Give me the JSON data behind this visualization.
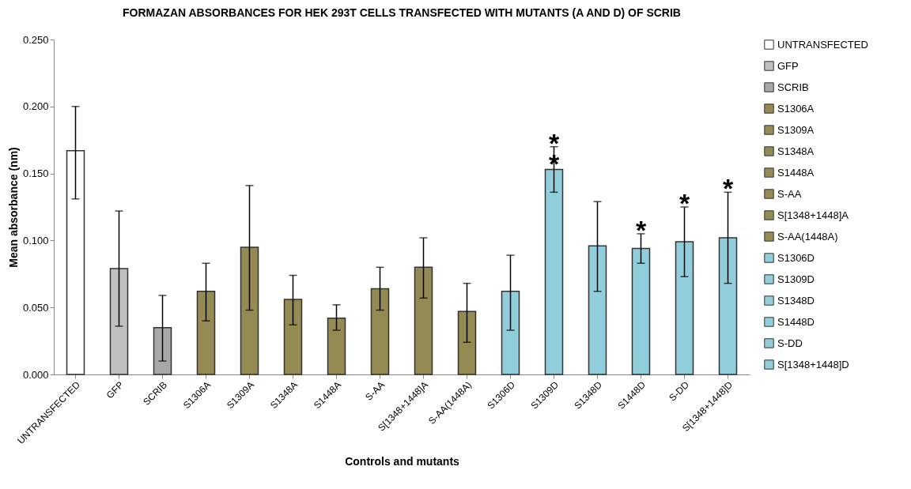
{
  "chart_data": {
    "type": "bar",
    "title": "FORMAZAN ABSORBANCES FOR HEK 293T CELLS TRANSFECTED WITH MUTANTS (A AND D) OF SCRIB",
    "xlabel": "Controls and mutants",
    "ylabel": "Mean absorbance (nm)",
    "categories": [
      "UNTRANSFECTED",
      "GFP",
      "SCRIB",
      "S1306A",
      "S1309A",
      "S1348A",
      "S1448A",
      "S-AA",
      "S[1348+1448]A",
      "S-AA(1448A)",
      "S1306D",
      "S1309D",
      "S1348D",
      "S1448D",
      "S-DD",
      "S[1348+1448]D"
    ],
    "series": [
      {
        "name": "UNTRANSFECTED",
        "color": "#ffffff",
        "values": [
          0.167,
          null,
          null,
          null,
          null,
          null,
          null,
          null,
          null,
          null,
          null,
          null,
          null,
          null,
          null,
          null
        ],
        "errors": [
          [
            0.131,
            0.2
          ],
          null,
          null,
          null,
          null,
          null,
          null,
          null,
          null,
          null,
          null,
          null,
          null,
          null,
          null,
          null
        ]
      },
      {
        "name": "GFP",
        "color": "#c0c0c0",
        "values": [
          null,
          0.079,
          null,
          null,
          null,
          null,
          null,
          null,
          null,
          null,
          null,
          null,
          null,
          null,
          null,
          null
        ],
        "errors": [
          null,
          [
            0.036,
            0.122
          ],
          null,
          null,
          null,
          null,
          null,
          null,
          null,
          null,
          null,
          null,
          null,
          null,
          null,
          null
        ]
      },
      {
        "name": "SCRIB",
        "color": "#a8a8a8",
        "values": [
          null,
          null,
          0.035,
          null,
          null,
          null,
          null,
          null,
          null,
          null,
          null,
          null,
          null,
          null,
          null,
          null
        ],
        "errors": [
          null,
          null,
          [
            0.01,
            0.059
          ],
          null,
          null,
          null,
          null,
          null,
          null,
          null,
          null,
          null,
          null,
          null,
          null,
          null
        ]
      },
      {
        "name": "S1306A",
        "color": "#948a54",
        "values": [
          null,
          null,
          null,
          0.062,
          null,
          null,
          null,
          null,
          null,
          null,
          null,
          null,
          null,
          null,
          null,
          null
        ],
        "errors": [
          null,
          null,
          null,
          [
            0.04,
            0.083
          ],
          null,
          null,
          null,
          null,
          null,
          null,
          null,
          null,
          null,
          null,
          null,
          null
        ]
      },
      {
        "name": "S1309A",
        "color": "#948a54",
        "values": [
          null,
          null,
          null,
          null,
          0.095,
          null,
          null,
          null,
          null,
          null,
          null,
          null,
          null,
          null,
          null,
          null
        ],
        "errors": [
          null,
          null,
          null,
          null,
          [
            0.048,
            0.141
          ],
          null,
          null,
          null,
          null,
          null,
          null,
          null,
          null,
          null,
          null,
          null
        ]
      },
      {
        "name": "S1348A",
        "color": "#948a54",
        "values": [
          null,
          null,
          null,
          null,
          null,
          0.056,
          null,
          null,
          null,
          null,
          null,
          null,
          null,
          null,
          null,
          null
        ],
        "errors": [
          null,
          null,
          null,
          null,
          null,
          [
            0.037,
            0.074
          ],
          null,
          null,
          null,
          null,
          null,
          null,
          null,
          null,
          null,
          null
        ]
      },
      {
        "name": "S1448A",
        "color": "#948a54",
        "values": [
          null,
          null,
          null,
          null,
          null,
          null,
          0.042,
          null,
          null,
          null,
          null,
          null,
          null,
          null,
          null,
          null
        ],
        "errors": [
          null,
          null,
          null,
          null,
          null,
          null,
          [
            0.033,
            0.052
          ],
          null,
          null,
          null,
          null,
          null,
          null,
          null,
          null,
          null
        ]
      },
      {
        "name": "S-AA",
        "color": "#948a54",
        "values": [
          null,
          null,
          null,
          null,
          null,
          null,
          null,
          0.064,
          null,
          null,
          null,
          null,
          null,
          null,
          null,
          null
        ],
        "errors": [
          null,
          null,
          null,
          null,
          null,
          null,
          null,
          [
            0.048,
            0.08
          ],
          null,
          null,
          null,
          null,
          null,
          null,
          null,
          null
        ]
      },
      {
        "name": "S[1348+1448]A",
        "color": "#948a54",
        "values": [
          null,
          null,
          null,
          null,
          null,
          null,
          null,
          null,
          0.08,
          null,
          null,
          null,
          null,
          null,
          null,
          null
        ],
        "errors": [
          null,
          null,
          null,
          null,
          null,
          null,
          null,
          null,
          [
            0.057,
            0.102
          ],
          null,
          null,
          null,
          null,
          null,
          null,
          null
        ]
      },
      {
        "name": "S-AA(1448A)",
        "color": "#948a54",
        "values": [
          null,
          null,
          null,
          null,
          null,
          null,
          null,
          null,
          null,
          0.047,
          null,
          null,
          null,
          null,
          null,
          null
        ],
        "errors": [
          null,
          null,
          null,
          null,
          null,
          null,
          null,
          null,
          null,
          [
            0.024,
            0.068
          ],
          null,
          null,
          null,
          null,
          null,
          null
        ]
      },
      {
        "name": "S1306D",
        "color": "#92cddc",
        "values": [
          null,
          null,
          null,
          null,
          null,
          null,
          null,
          null,
          null,
          null,
          0.062,
          null,
          null,
          null,
          null,
          null
        ],
        "errors": [
          null,
          null,
          null,
          null,
          null,
          null,
          null,
          null,
          null,
          null,
          [
            0.033,
            0.089
          ],
          null,
          null,
          null,
          null,
          null
        ]
      },
      {
        "name": "S1309D",
        "color": "#92cddc",
        "values": [
          null,
          null,
          null,
          null,
          null,
          null,
          null,
          null,
          null,
          null,
          null,
          0.153,
          null,
          null,
          null,
          null
        ],
        "errors": [
          null,
          null,
          null,
          null,
          null,
          null,
          null,
          null,
          null,
          null,
          null,
          [
            0.136,
            0.17
          ],
          null,
          null,
          null,
          null
        ]
      },
      {
        "name": "S1348D",
        "color": "#92cddc",
        "values": [
          null,
          null,
          null,
          null,
          null,
          null,
          null,
          null,
          null,
          null,
          null,
          null,
          0.096,
          null,
          null,
          null
        ],
        "errors": [
          null,
          null,
          null,
          null,
          null,
          null,
          null,
          null,
          null,
          null,
          null,
          null,
          [
            0.062,
            0.129
          ],
          null,
          null,
          null
        ]
      },
      {
        "name": "S1448D",
        "color": "#92cddc",
        "values": [
          null,
          null,
          null,
          null,
          null,
          null,
          null,
          null,
          null,
          null,
          null,
          null,
          null,
          0.094,
          null,
          null
        ],
        "errors": [
          null,
          null,
          null,
          null,
          null,
          null,
          null,
          null,
          null,
          null,
          null,
          null,
          null,
          [
            0.083,
            0.105
          ],
          null,
          null
        ]
      },
      {
        "name": "S-DD",
        "color": "#92cddc",
        "values": [
          null,
          null,
          null,
          null,
          null,
          null,
          null,
          null,
          null,
          null,
          null,
          null,
          null,
          null,
          0.099,
          null
        ],
        "errors": [
          null,
          null,
          null,
          null,
          null,
          null,
          null,
          null,
          null,
          null,
          null,
          null,
          null,
          null,
          [
            0.073,
            0.125
          ],
          null
        ]
      },
      {
        "name": "S[1348+1448]D",
        "color": "#92cddc",
        "values": [
          null,
          null,
          null,
          null,
          null,
          null,
          null,
          null,
          null,
          null,
          null,
          null,
          null,
          null,
          null,
          0.102
        ],
        "errors": [
          null,
          null,
          null,
          null,
          null,
          null,
          null,
          null,
          null,
          null,
          null,
          null,
          null,
          null,
          null,
          [
            0.068,
            0.136
          ]
        ]
      }
    ],
    "ylim": [
      0,
      0.25
    ],
    "yticks": [
      {
        "value": 0,
        "label": "0.000"
      },
      {
        "value": 0.05,
        "label": "0.050"
      },
      {
        "value": 0.1,
        "label": "0.100"
      },
      {
        "value": 0.15,
        "label": "0.150"
      },
      {
        "value": 0.2,
        "label": "0.200"
      },
      {
        "value": 0.25,
        "label": "0.250"
      }
    ],
    "grid": false,
    "legend": "right",
    "annotations": [
      {
        "text": "**",
        "x": "S1309D",
        "y": 0.17
      },
      {
        "text": "*",
        "x": "S1448D",
        "y": 0.105
      },
      {
        "text": "*",
        "x": "S-DD",
        "y": 0.125
      },
      {
        "text": "*",
        "x": "S[1348+1448]D",
        "y": 0.136
      }
    ]
  }
}
